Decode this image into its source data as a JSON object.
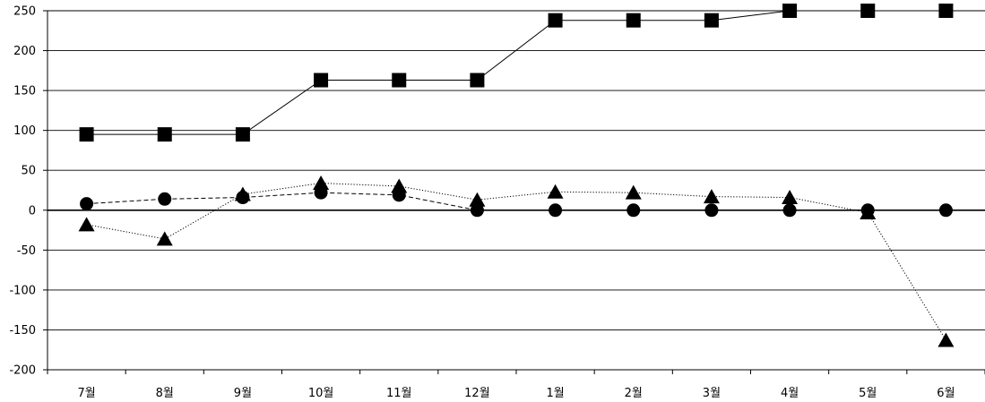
{
  "chart_data": {
    "type": "line",
    "categories": [
      "7월",
      "8월",
      "9월",
      "10월",
      "11월",
      "12월",
      "1월",
      "2월",
      "3월",
      "4월",
      "5월",
      "6월"
    ],
    "y_ticks": [
      "250",
      "200",
      "150",
      "100",
      "50",
      "0",
      "-50",
      "-100",
      "-150",
      "-200"
    ],
    "ylim": [
      -200,
      250
    ],
    "grid": true,
    "legend": "none",
    "series": [
      {
        "marker": "square",
        "line": "solid",
        "color": "#000000",
        "values": [
          95,
          95,
          95,
          163,
          163,
          163,
          238,
          238,
          238,
          250,
          250,
          250
        ]
      },
      {
        "marker": "circle",
        "line": "dashed",
        "color": "#000000",
        "values": [
          8,
          14,
          16,
          22,
          19,
          0,
          0,
          0,
          0,
          0,
          0,
          0
        ]
      },
      {
        "marker": "triangle",
        "line": "dotted",
        "color": "#000000",
        "values": [
          -18,
          -36,
          20,
          34,
          30,
          13,
          23,
          22,
          17,
          16,
          -3,
          -163
        ]
      }
    ]
  }
}
